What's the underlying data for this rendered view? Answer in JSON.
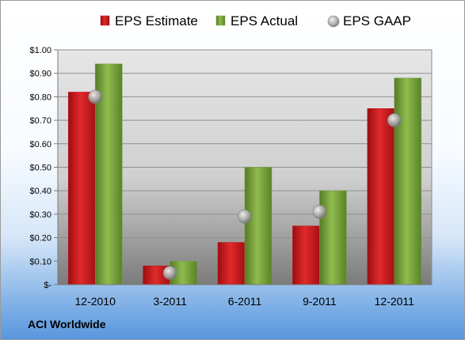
{
  "chart_data": {
    "type": "bar",
    "categories": [
      "12-2010",
      "3-2011",
      "6-2011",
      "9-2011",
      "12-2011"
    ],
    "series": [
      {
        "name": "EPS Estimate",
        "kind": "bar",
        "color": "#c8141c",
        "values": [
          0.82,
          0.08,
          0.18,
          0.25,
          0.75
        ]
      },
      {
        "name": "EPS Actual",
        "kind": "bar",
        "color": "#76a23c",
        "values": [
          0.94,
          0.1,
          0.5,
          0.4,
          0.88
        ]
      },
      {
        "name": "EPS GAAP",
        "kind": "marker",
        "color": "#a8a8a8",
        "values": [
          0.8,
          0.05,
          0.29,
          0.31,
          0.7
        ]
      }
    ],
    "yticks": [
      {
        "value": 0.0,
        "label": "$-"
      },
      {
        "value": 0.1,
        "label": "$0.10"
      },
      {
        "value": 0.2,
        "label": "$0.20"
      },
      {
        "value": 0.3,
        "label": "$0.30"
      },
      {
        "value": 0.4,
        "label": "$0.40"
      },
      {
        "value": 0.5,
        "label": "$0.50"
      },
      {
        "value": 0.6,
        "label": "$0.60"
      },
      {
        "value": 0.7,
        "label": "$0.70"
      },
      {
        "value": 0.8,
        "label": "$0.80"
      },
      {
        "value": 0.9,
        "label": "$0.90"
      },
      {
        "value": 1.0,
        "label": "$1.00"
      }
    ],
    "ylim": [
      0,
      1.0
    ],
    "grid": true,
    "legend_position": "top"
  },
  "company": "ACI Worldwide"
}
